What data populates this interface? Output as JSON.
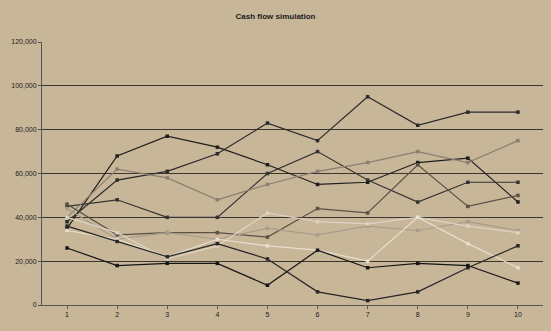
{
  "chart_data": {
    "type": "line",
    "title": "Cash flow simulation",
    "categories": [
      "1",
      "2",
      "3",
      "4",
      "5",
      "6",
      "7",
      "8",
      "9",
      "10"
    ],
    "marker": "square",
    "line_style": "solid",
    "grid": true,
    "ylim": [
      0,
      120000
    ],
    "yticks": [
      0,
      {
        "value": 20000,
        "label": "20,000"
      },
      {
        "value": 40000,
        "label": "40,000"
      },
      {
        "value": 60000,
        "label": "60,000"
      },
      {
        "value": 80000,
        "label": "80,000"
      },
      {
        "value": 100000,
        "label": "100,000"
      },
      {
        "value": 120000,
        "label": "120,000"
      }
    ],
    "series": [
      {
        "color": "#2a2a2a",
        "values": [
          38000,
          57000,
          61000,
          69000,
          83000,
          75000,
          95000,
          82000,
          88000,
          88000
        ]
      },
      {
        "color": "#1e1e1e",
        "values": [
          35000,
          68000,
          77000,
          72000,
          64000,
          55000,
          56000,
          65000,
          67000,
          47000
        ]
      },
      {
        "color": "#333333",
        "values": [
          45000,
          48000,
          40000,
          40000,
          60000,
          70000,
          57000,
          47000,
          56000,
          56000
        ]
      },
      {
        "color": "#8a7f70",
        "values": [
          40000,
          62000,
          58000,
          48000,
          55000,
          61000,
          65000,
          70000,
          65000,
          75000
        ]
      },
      {
        "color": "#5a5046",
        "values": [
          46000,
          32000,
          33000,
          33000,
          31000,
          44000,
          42000,
          64000,
          45000,
          50000
        ]
      },
      {
        "color": "#a89c8a",
        "values": [
          44000,
          30000,
          33000,
          30000,
          35000,
          32000,
          36000,
          34000,
          38000,
          34000
        ]
      },
      {
        "color": "#ddd3c3",
        "values": [
          40000,
          33000,
          21000,
          27000,
          42000,
          38000,
          37000,
          40000,
          36000,
          33000
        ]
      },
      {
        "color": "#e8dfd0",
        "values": [
          34000,
          30000,
          22000,
          30000,
          27000,
          25000,
          20000,
          40000,
          28000,
          17000
        ]
      },
      {
        "color": "#262626",
        "values": [
          36000,
          29000,
          22000,
          28000,
          21000,
          6000,
          2000,
          6000,
          17000,
          27000
        ]
      },
      {
        "color": "#151515",
        "values": [
          26000,
          18000,
          19000,
          19000,
          9000,
          25000,
          17000,
          19000,
          18000,
          10000
        ]
      }
    ]
  }
}
